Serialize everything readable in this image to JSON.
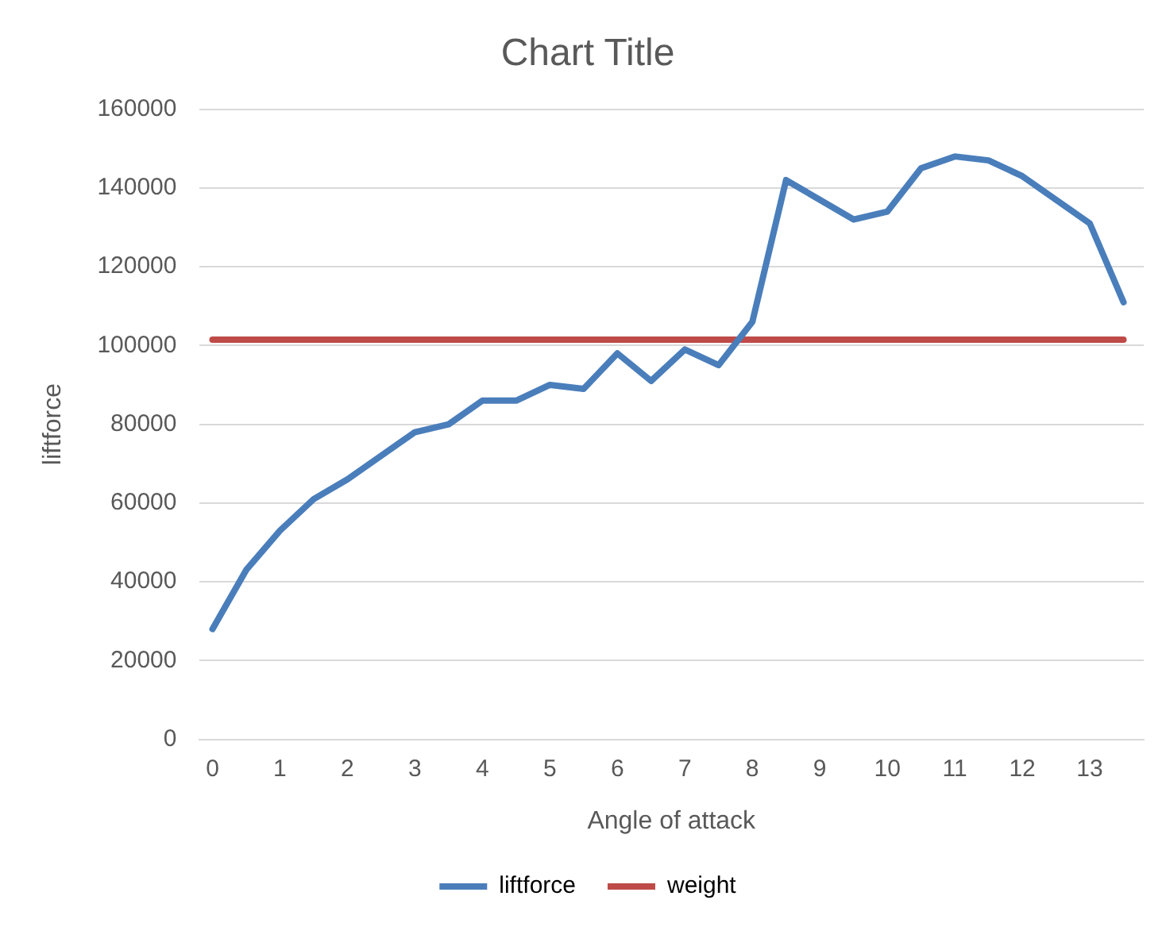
{
  "chart_data": {
    "type": "line",
    "title": "Chart Title",
    "xlabel": "Angle of attack",
    "ylabel": "liftforce",
    "x": [
      0,
      0.5,
      1,
      1.5,
      2,
      2.5,
      3,
      3.5,
      4,
      4.5,
      5,
      5.5,
      6,
      6.5,
      7,
      7.5,
      8,
      8.5,
      9,
      9.5,
      10,
      10.5,
      11,
      11.5,
      12,
      12.5,
      13,
      13.5
    ],
    "series": [
      {
        "name": "liftforce",
        "color": "#4a7ebb",
        "values": [
          28000,
          43000,
          53000,
          61000,
          66000,
          72000,
          78000,
          80000,
          86000,
          86000,
          90000,
          89000,
          98000,
          91000,
          99000,
          95000,
          106000,
          142000,
          137000,
          132000,
          134000,
          145000,
          148000,
          147000,
          143000,
          137000,
          131000,
          111000
        ]
      },
      {
        "name": "weight",
        "color": "#be4b48",
        "values": [
          101500,
          101500,
          101500,
          101500,
          101500,
          101500,
          101500,
          101500,
          101500,
          101500,
          101500,
          101500,
          101500,
          101500,
          101500,
          101500,
          101500,
          101500,
          101500,
          101500,
          101500,
          101500,
          101500,
          101500,
          101500,
          101500,
          101500,
          101500
        ]
      }
    ],
    "xlim": [
      -0.2,
      13.8
    ],
    "xticks": [
      0,
      1,
      2,
      3,
      4,
      5,
      6,
      7,
      8,
      9,
      10,
      11,
      12,
      13
    ],
    "ylim": [
      0,
      160000
    ],
    "yticks": [
      0,
      20000,
      40000,
      60000,
      80000,
      100000,
      120000,
      140000,
      160000
    ],
    "grid": "y",
    "legend": "bottom",
    "marker": "none",
    "line_style": "solid"
  }
}
